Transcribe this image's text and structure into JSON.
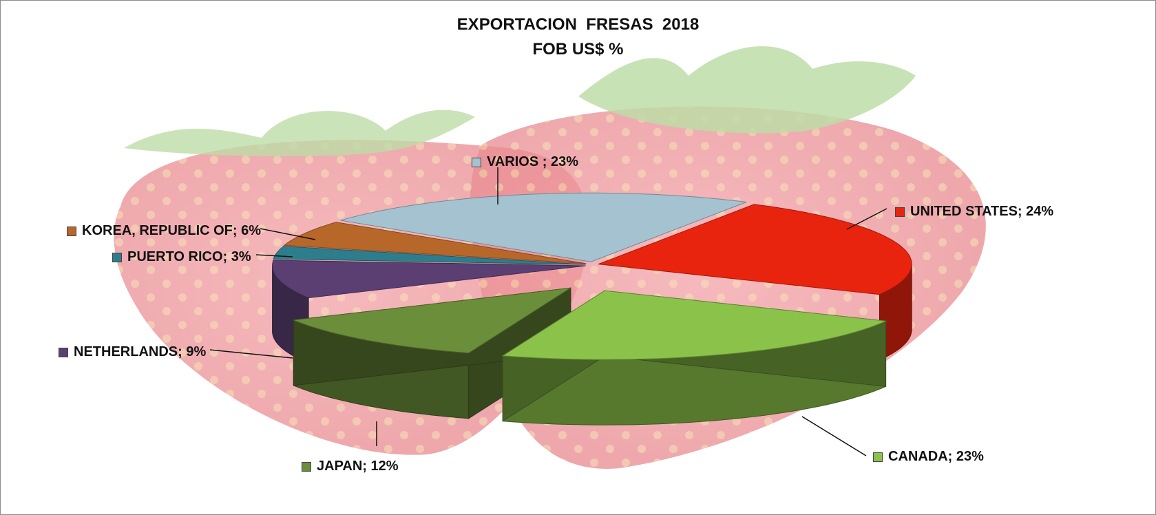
{
  "chart_data": {
    "type": "pie",
    "title": "EXPORTACION  FRESAS  2018",
    "subtitle": "FOB US$ %",
    "three_d": true,
    "exploded": [
      "CANADA",
      "JAPAN"
    ],
    "slices": [
      {
        "name": "UNITED STATES",
        "value": 24,
        "label": "UNITED STATES; 24%",
        "color": "#e8240e"
      },
      {
        "name": "CANADA",
        "value": 23,
        "label": "CANADA; 23%",
        "color": "#8bc34a"
      },
      {
        "name": "JAPAN",
        "value": 12,
        "label": "JAPAN; 12%",
        "color": "#6b8e3a"
      },
      {
        "name": "NETHERLANDS",
        "value": 9,
        "label": "NETHERLANDS; 9%",
        "color": "#5b3f73"
      },
      {
        "name": "PUERTO RICO",
        "value": 3,
        "label": "PUERTO RICO; 3%",
        "color": "#2e7d8c"
      },
      {
        "name": "KOREA, REPUBLIC OF",
        "value": 6,
        "label": "KOREA, REPUBLIC OF; 6%",
        "color": "#b8672a"
      },
      {
        "name": "VARIOS",
        "value": 23,
        "label": "VARIOS ; 23%",
        "color": "#a4c2cf"
      }
    ],
    "legend": "none (data labels with leader lines)"
  },
  "background_motif": "strawberries"
}
